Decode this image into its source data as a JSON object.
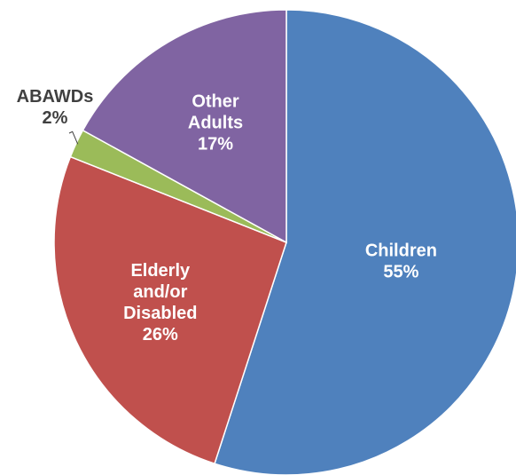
{
  "chart_data": {
    "type": "pie",
    "title": "",
    "slices": [
      {
        "name": "Children",
        "label_lines": [
          "Children"
        ],
        "value_label": "55%",
        "value": 55,
        "color": "#4f81bd",
        "label_placement": "inside"
      },
      {
        "name": "Elderly and/or Disabled",
        "label_lines": [
          "Elderly",
          "and/or",
          "Disabled"
        ],
        "value_label": "26%",
        "value": 26,
        "color": "#c0504d",
        "label_placement": "inside"
      },
      {
        "name": "ABAWDs",
        "label_lines": [
          "ABAWDs"
        ],
        "value_label": "2%",
        "value": 2,
        "color": "#9bbb59",
        "label_placement": "outside-with-leader"
      },
      {
        "name": "Other Adults",
        "label_lines": [
          "Other",
          "Adults"
        ],
        "value_label": "17%",
        "value": 17,
        "color": "#8064a2",
        "label_placement": "inside"
      }
    ],
    "start": "12 o'clock",
    "direction": "clockwise",
    "legend": "none"
  }
}
